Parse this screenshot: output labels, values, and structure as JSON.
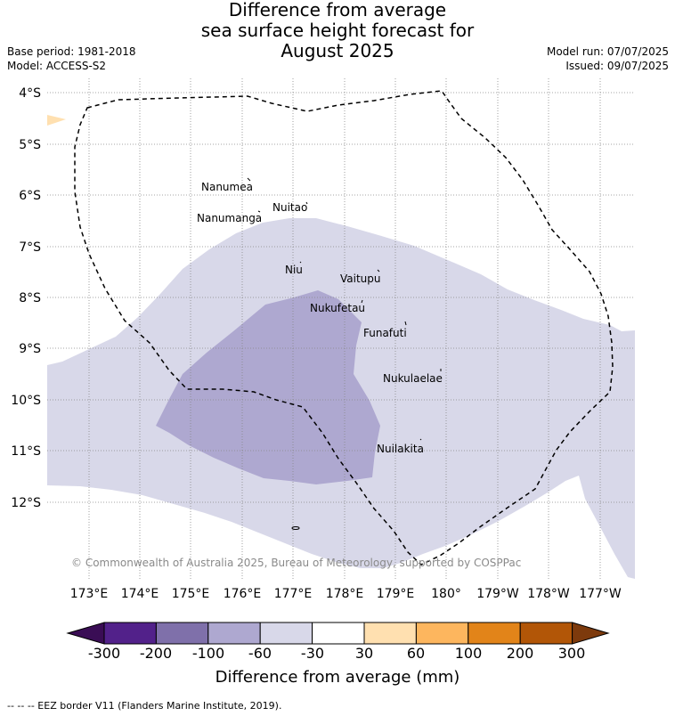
{
  "title": {
    "line1": "Difference from average",
    "line2": "sea surface height forecast for",
    "line3": "August 2025"
  },
  "meta": {
    "base_period": "Base period: 1981-2018",
    "model": "Model: ACCESS-S2",
    "model_run": "Model run: 07/07/2025",
    "issued": "Issued: 09/07/2025"
  },
  "map": {
    "lat_labels": [
      "4°S",
      "5°S",
      "6°S",
      "7°S",
      "8°S",
      "9°S",
      "10°S",
      "11°S",
      "12°S"
    ],
    "lon_labels": [
      "173°E",
      "174°E",
      "175°E",
      "176°E",
      "177°E",
      "178°E",
      "179°E",
      "180°",
      "179°W",
      "178°W",
      "177°W"
    ],
    "places": [
      {
        "name": "Nanumea"
      },
      {
        "name": "Nuitao"
      },
      {
        "name": "Nanumanga"
      },
      {
        "name": "Niu"
      },
      {
        "name": "Vaitupu"
      },
      {
        "name": "Nukufetau"
      },
      {
        "name": "Funafuti"
      },
      {
        "name": "Nukulaelae"
      },
      {
        "name": "Nuilakita"
      }
    ],
    "copyright": "© Commonwealth of Australia 2025, Bureau of Meteorology, supported by COSPPac"
  },
  "colorbar": {
    "colors": {
      "under": "#3a0d55",
      "c1": "#52218a",
      "c2": "#7f70aa",
      "c3": "#aea8d0",
      "c4": "#d8d8e9",
      "c5": "#ffffff",
      "c6": "#ffe0b0",
      "c7": "#fdb65e",
      "c8": "#e28419",
      "c9": "#b25607",
      "over": "#7d3a0c"
    },
    "ticks": [
      "-300",
      "-200",
      "-100",
      "-60",
      "-30",
      "30",
      "60",
      "100",
      "200",
      "300"
    ],
    "label": "Difference from average (mm)"
  },
  "footnote": "--  --  -- EEZ border V11 (Flanders Marine Institute, 2019)."
}
